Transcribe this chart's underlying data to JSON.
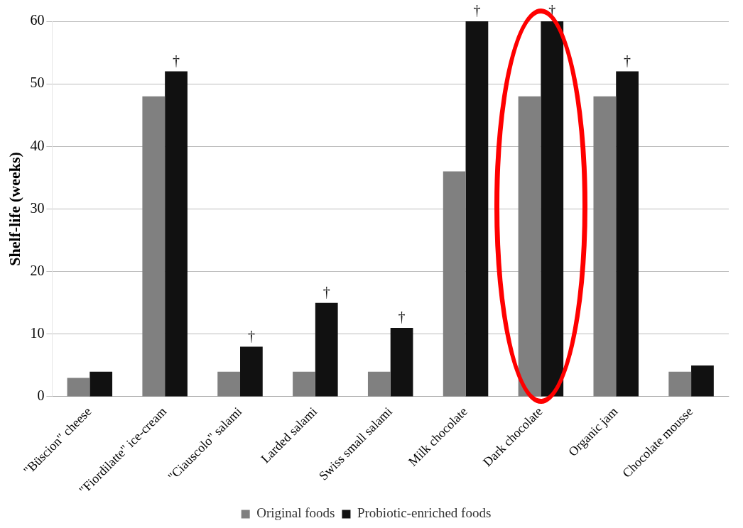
{
  "chart_data": {
    "type": "bar",
    "ylabel": "Shelf-life (weeks)",
    "categories": [
      "\"Büscion\" cheese",
      "\"Fiordilatte\" ice-cream",
      "\"Ciauscolo\" salami",
      "Larded salami",
      "Swiss small salami",
      "Milk chocolate",
      "Dark chocolate",
      "Organic jam",
      "Chocolate mousse"
    ],
    "series": [
      {
        "name": "Original foods",
        "color": "#808080",
        "values": [
          3,
          48,
          4,
          4,
          4,
          36,
          48,
          48,
          4
        ]
      },
      {
        "name": "Probiotic-enriched foods",
        "color": "#111111",
        "values": [
          4,
          52,
          8,
          15,
          11,
          60,
          60,
          52,
          5
        ]
      }
    ],
    "ylim": [
      0,
      60
    ],
    "yticks": [
      0,
      10,
      20,
      30,
      40,
      50,
      60
    ],
    "grid": "y",
    "legend": "bottom",
    "annotations": [
      {
        "text": "†",
        "x": "\"Fiordilatte\" ice-cream",
        "y": 52
      },
      {
        "text": "†",
        "x": "\"Ciauscolo\" salami",
        "y": 8
      },
      {
        "text": "†",
        "x": "Larded salami",
        "y": 15
      },
      {
        "text": "†",
        "x": "Swiss small salami",
        "y": 11
      },
      {
        "text": "†",
        "x": "Milk chocolate",
        "y": 60
      },
      {
        "text": "†",
        "x": "Dark chocolate",
        "y": 60
      },
      {
        "text": "†",
        "x": "Organic jam",
        "y": 52
      }
    ]
  }
}
